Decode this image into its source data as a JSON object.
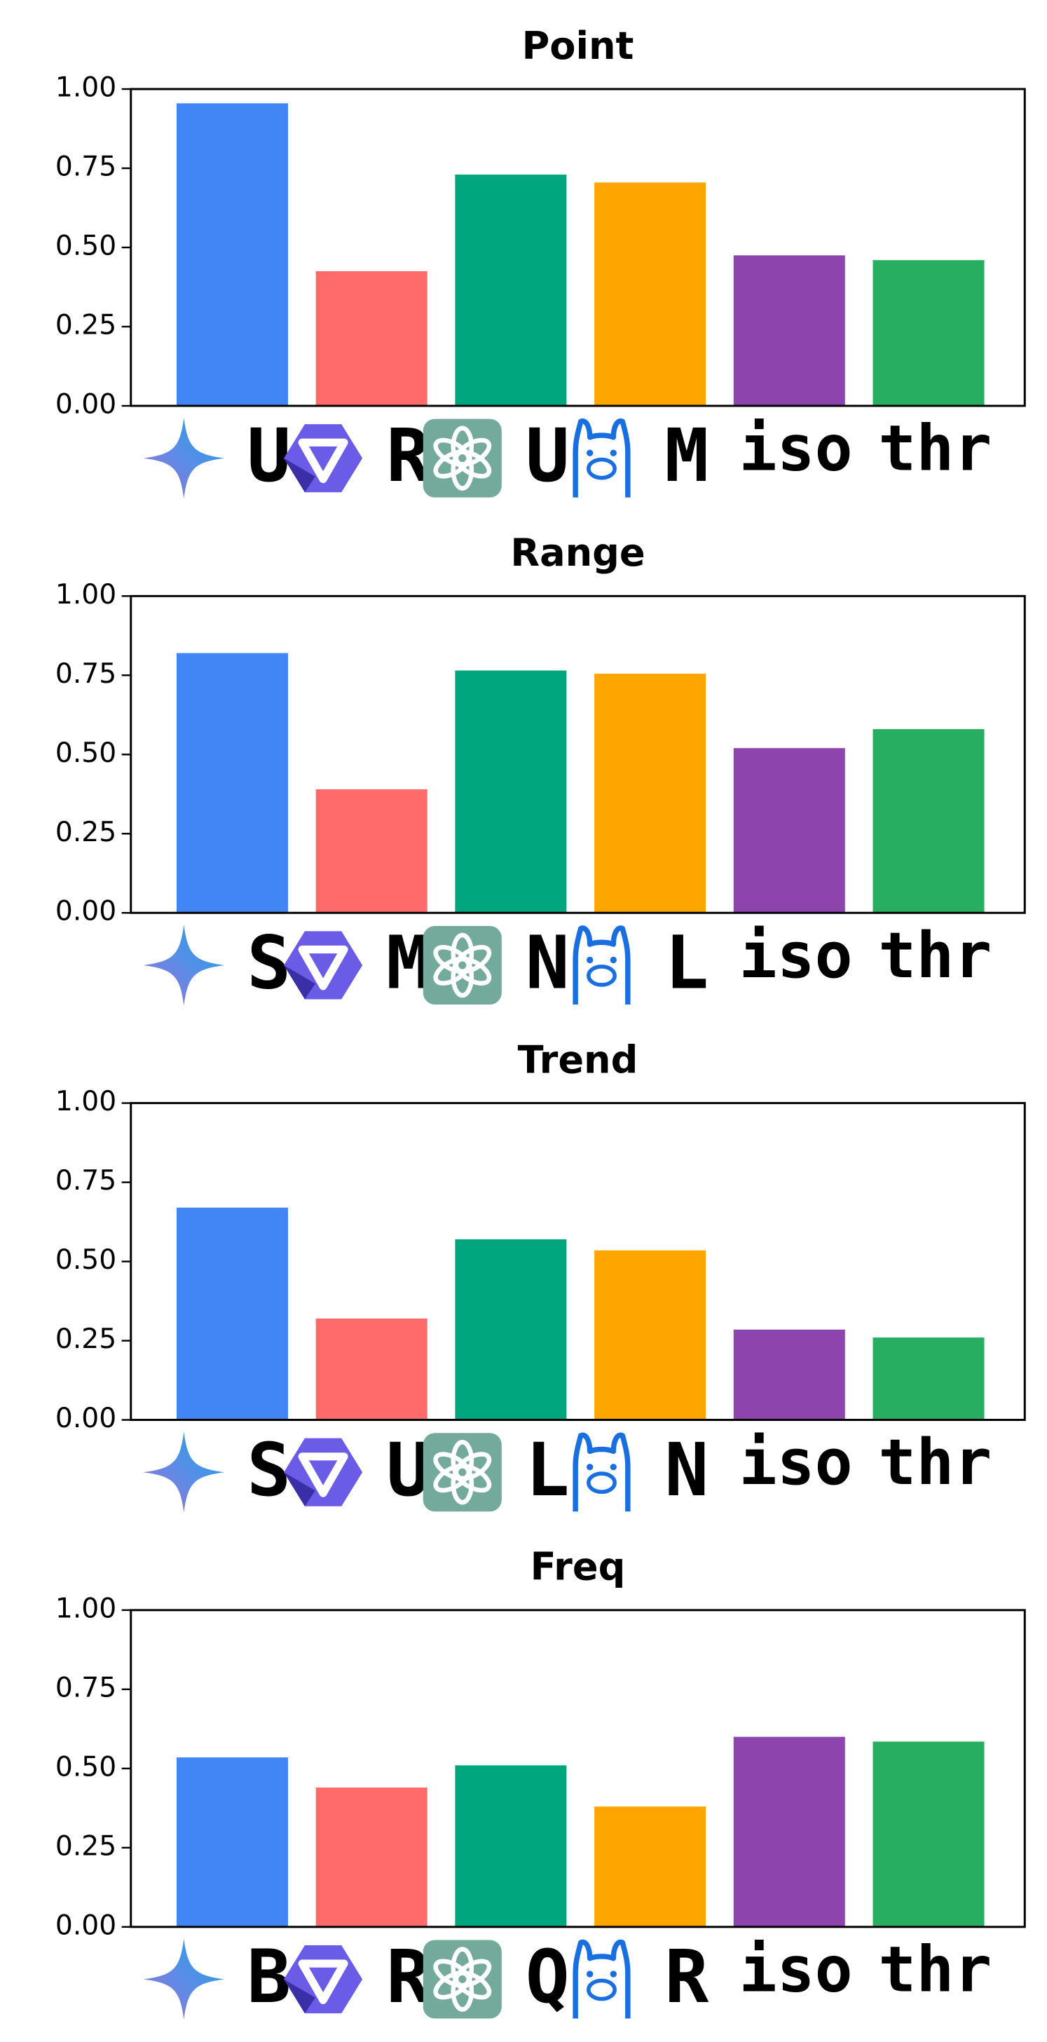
{
  "chart_data": [
    {
      "type": "bar",
      "title": "Point",
      "categories": [
        "U",
        "R",
        "U",
        "M",
        "iso",
        "thr"
      ],
      "values": [
        0.955,
        0.425,
        0.73,
        0.705,
        0.475,
        0.46
      ],
      "colors": [
        "#4285f4",
        "#ff6b6b",
        "#00a67e",
        "#ffa500",
        "#8e44ad",
        "#27ae60"
      ],
      "ylim": [
        0,
        1
      ],
      "yticks": [
        {
          "value": 0,
          "label": "0.00"
        },
        {
          "value": 0.25,
          "label": "0.25"
        },
        {
          "value": 0.5,
          "label": "0.50"
        },
        {
          "value": 0.75,
          "label": "0.75"
        },
        {
          "value": 1,
          "label": "1.00"
        }
      ]
    },
    {
      "type": "bar",
      "title": "Range",
      "categories": [
        "S",
        "M",
        "N",
        "L",
        "iso",
        "thr"
      ],
      "values": [
        0.82,
        0.39,
        0.765,
        0.755,
        0.52,
        0.58
      ],
      "colors": [
        "#4285f4",
        "#ff6b6b",
        "#00a67e",
        "#ffa500",
        "#8e44ad",
        "#27ae60"
      ],
      "ylim": [
        0,
        1
      ],
      "yticks": [
        {
          "value": 0,
          "label": "0.00"
        },
        {
          "value": 0.25,
          "label": "0.25"
        },
        {
          "value": 0.5,
          "label": "0.50"
        },
        {
          "value": 0.75,
          "label": "0.75"
        },
        {
          "value": 1,
          "label": "1.00"
        }
      ]
    },
    {
      "type": "bar",
      "title": "Trend",
      "categories": [
        "S",
        "U",
        "L",
        "N",
        "iso",
        "thr"
      ],
      "values": [
        0.67,
        0.32,
        0.57,
        0.535,
        0.285,
        0.26
      ],
      "colors": [
        "#4285f4",
        "#ff6b6b",
        "#00a67e",
        "#ffa500",
        "#8e44ad",
        "#27ae60"
      ],
      "ylim": [
        0,
        1
      ],
      "yticks": [
        {
          "value": 0,
          "label": "0.00"
        },
        {
          "value": 0.25,
          "label": "0.25"
        },
        {
          "value": 0.5,
          "label": "0.50"
        },
        {
          "value": 0.75,
          "label": "0.75"
        },
        {
          "value": 1,
          "label": "1.00"
        }
      ]
    },
    {
      "type": "bar",
      "title": "Freq",
      "categories": [
        "B",
        "R",
        "Q",
        "R",
        "iso",
        "thr"
      ],
      "values": [
        0.535,
        0.44,
        0.51,
        0.38,
        0.6,
        0.585
      ],
      "colors": [
        "#4285f4",
        "#ff6b6b",
        "#00a67e",
        "#ffa500",
        "#8e44ad",
        "#27ae60"
      ],
      "ylim": [
        0,
        1
      ],
      "yticks": [
        {
          "value": 0,
          "label": "0.00"
        },
        {
          "value": 0.25,
          "label": "0.25"
        },
        {
          "value": 0.5,
          "label": "0.50"
        },
        {
          "value": 0.75,
          "label": "0.75"
        },
        {
          "value": 1,
          "label": "1.00"
        }
      ]
    }
  ]
}
